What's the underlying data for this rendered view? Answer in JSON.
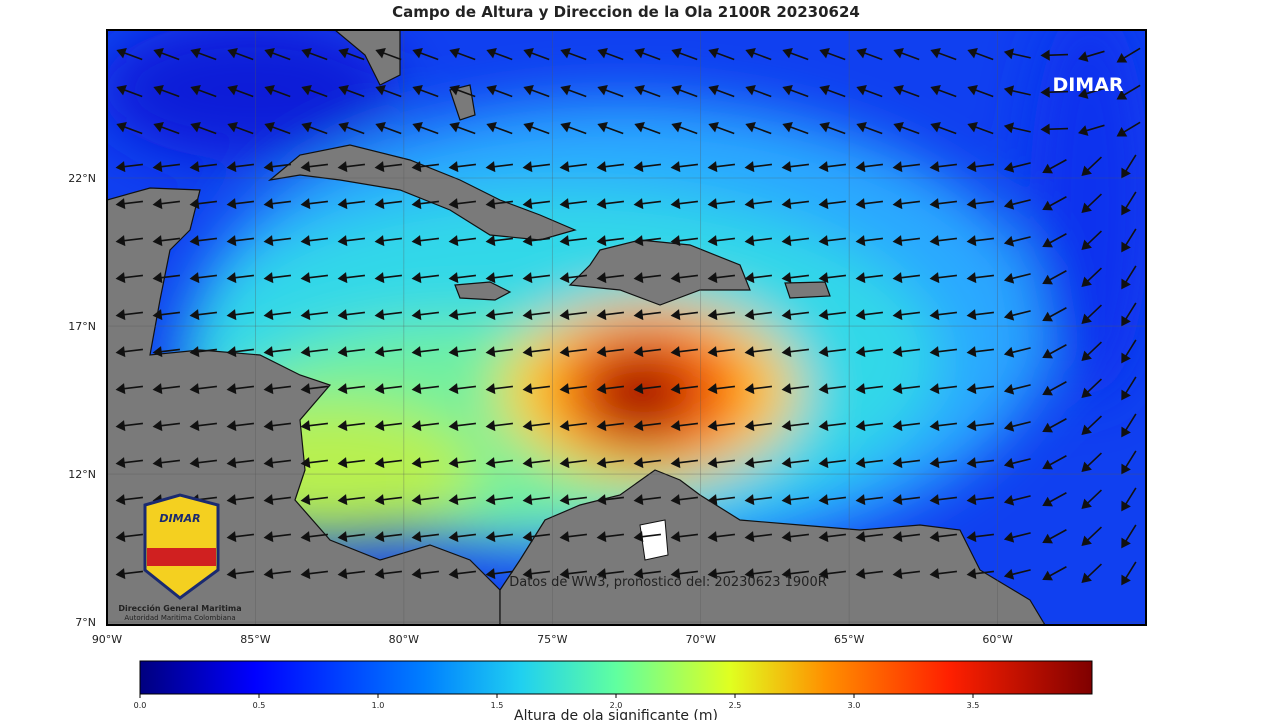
{
  "title": "Campo de Altura y Direccion de la Ola 2100R 20230624",
  "watermark": "DIMAR",
  "annotation": "Datos de WW3, pronostico del: 20230623 1900R",
  "logo": {
    "brand": "DIMAR",
    "name": "Dirección General Maritima",
    "subtitle": "Autoridad Maritima Colombiana"
  },
  "map": {
    "xlim": [
      -90,
      -55
    ],
    "ylim": [
      6.9,
      27
    ],
    "xticks": [
      {
        "value": -90,
        "label": "90°W"
      },
      {
        "value": -85,
        "label": "85°W"
      },
      {
        "value": -80,
        "label": "80°W"
      },
      {
        "value": -75,
        "label": "75°W"
      },
      {
        "value": -70,
        "label": "70°W"
      },
      {
        "value": -65,
        "label": "65°W"
      },
      {
        "value": -60,
        "label": "60°W"
      }
    ],
    "yticks": [
      {
        "value": 7,
        "label": "7°N"
      },
      {
        "value": 12,
        "label": "12°N"
      },
      {
        "value": 17,
        "label": "17°N"
      },
      {
        "value": 22,
        "label": "22°N"
      }
    ],
    "grid": true
  },
  "colorbar": {
    "label": "Altura de ola significante (m)",
    "lim": [
      0,
      4
    ],
    "ticks": [
      {
        "value": 0,
        "label": "0.0"
      },
      0.5,
      {
        "value": 1,
        "label": "1.0"
      },
      1.5,
      {
        "value": 2,
        "label": "2.0"
      },
      2.5,
      {
        "value": 3,
        "label": "3.0"
      },
      3.5
    ]
  }
}
